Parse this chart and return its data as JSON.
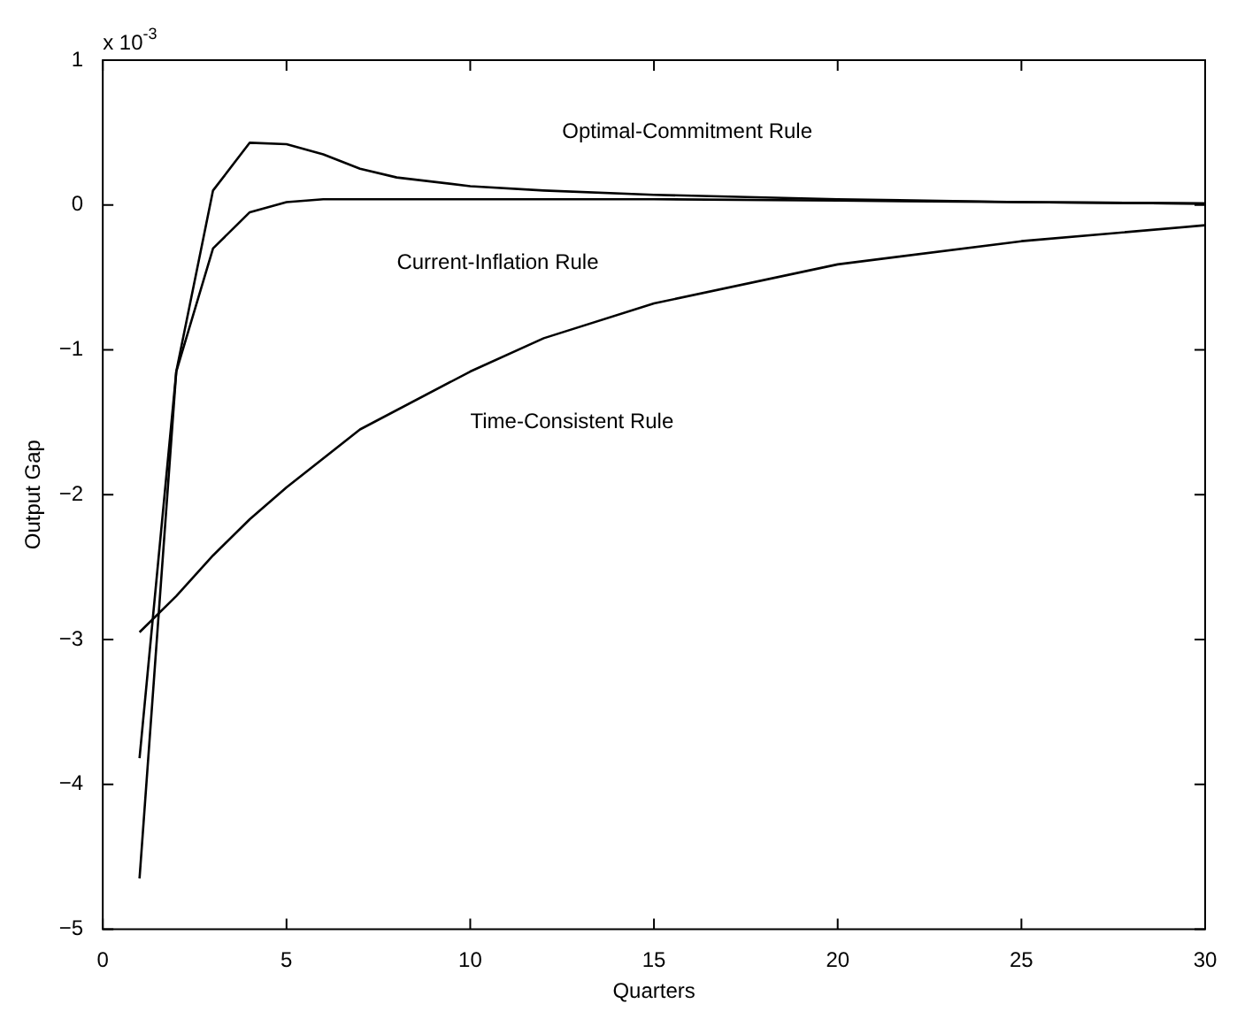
{
  "chart_data": {
    "type": "line",
    "xlabel": "Quarters",
    "ylabel": "Output Gap",
    "xlim": [
      0,
      30
    ],
    "xticks": [
      0,
      5,
      10,
      15,
      20,
      25,
      30
    ],
    "ylim": [
      -5,
      1
    ],
    "yticks": [
      -5,
      -4,
      -3,
      -2,
      -1,
      0,
      1
    ],
    "grid": false,
    "legend": false,
    "marker": "none",
    "line_style": "solid",
    "series": [
      {
        "name": "Optimal-Commitment Rule",
        "color": "#000000",
        "x": [
          1,
          2,
          3,
          4,
          5,
          6,
          7,
          8,
          10,
          12,
          15,
          20,
          25,
          30
        ],
        "values": [
          -4.65,
          -1.15,
          0.1,
          0.43,
          0.42,
          0.35,
          0.25,
          0.19,
          0.13,
          0.1,
          0.07,
          0.04,
          0.02,
          0.01
        ]
      },
      {
        "name": "Current-Inflation Rule",
        "color": "#000000",
        "x": [
          1,
          2,
          3,
          4,
          5,
          6,
          8,
          10,
          15,
          20,
          25,
          30
        ],
        "values": [
          -3.82,
          -1.15,
          -0.3,
          -0.05,
          0.02,
          0.04,
          0.04,
          0.04,
          0.04,
          0.03,
          0.02,
          0.01
        ]
      },
      {
        "name": "Time-Consistent Rule",
        "color": "#000000",
        "x": [
          1,
          2,
          3,
          4,
          5,
          7,
          10,
          12,
          15,
          20,
          25,
          30
        ],
        "values": [
          -2.95,
          -2.7,
          -2.42,
          -2.17,
          -1.95,
          -1.55,
          -1.15,
          -0.92,
          -0.68,
          -0.41,
          -0.25,
          -0.14
        ]
      }
    ],
    "annotations": [
      "x 10$^{-3}$"
    ]
  }
}
